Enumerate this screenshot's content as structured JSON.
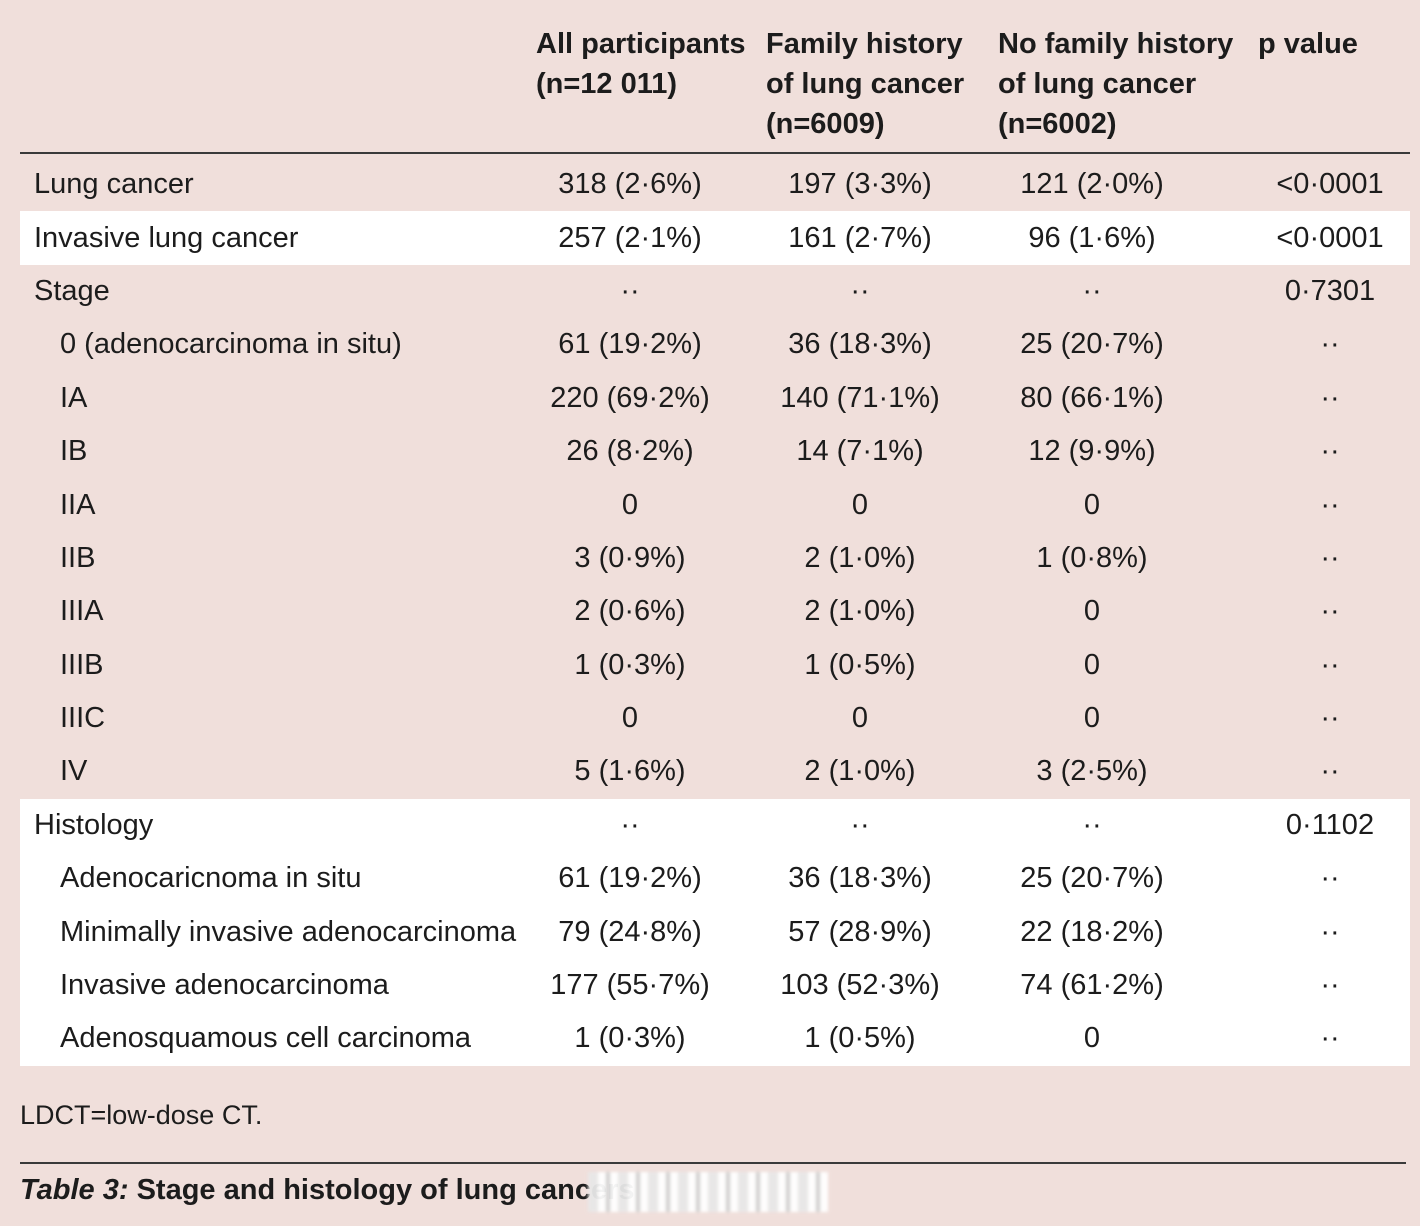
{
  "columns": {
    "all": "All participants\n(n=12 011)",
    "fh": "Family history\nof lung cancer\n(n=6009)",
    "nofh": "No family history\nof lung cancer\n(n=6002)",
    "p": "p value"
  },
  "rows": [
    {
      "label": "Lung cancer",
      "indent": false,
      "all": "318 (2·6%)",
      "fh": "197 (3·3%)",
      "nofh": "121 (2·0%)",
      "p": "<0·0001"
    },
    {
      "label": "Invasive lung cancer",
      "indent": false,
      "all": "257 (2·1%)",
      "fh": "161 (2·7%)",
      "nofh": "96 (1·6%)",
      "p": "<0·0001"
    },
    {
      "label": "Stage",
      "indent": false,
      "all": "··",
      "fh": "··",
      "nofh": "··",
      "p": "0·7301"
    },
    {
      "label": "0 (adenocarcinoma in situ)",
      "indent": true,
      "all": "61 (19·2%)",
      "fh": "36 (18·3%)",
      "nofh": "25 (20·7%)",
      "p": "··"
    },
    {
      "label": "IA",
      "indent": true,
      "all": "220 (69·2%)",
      "fh": "140 (71·1%)",
      "nofh": "80 (66·1%)",
      "p": "··"
    },
    {
      "label": "IB",
      "indent": true,
      "all": "26 (8·2%)",
      "fh": "14 (7·1%)",
      "nofh": "12 (9·9%)",
      "p": "··"
    },
    {
      "label": "IIA",
      "indent": true,
      "all": "0",
      "fh": "0",
      "nofh": "0",
      "p": "··"
    },
    {
      "label": "IIB",
      "indent": true,
      "all": "3 (0·9%)",
      "fh": "2 (1·0%)",
      "nofh": "1 (0·8%)",
      "p": "··"
    },
    {
      "label": "IIIA",
      "indent": true,
      "all": "2 (0·6%)",
      "fh": "2 (1·0%)",
      "nofh": "0",
      "p": "··"
    },
    {
      "label": "IIIB",
      "indent": true,
      "all": "1 (0·3%)",
      "fh": "1 (0·5%)",
      "nofh": "0",
      "p": "··"
    },
    {
      "label": "IIIC",
      "indent": true,
      "all": "0",
      "fh": "0",
      "nofh": "0",
      "p": "··"
    },
    {
      "label": "IV",
      "indent": true,
      "all": "5 (1·6%)",
      "fh": "2 (1·0%)",
      "nofh": "3 (2·5%)",
      "p": "··"
    },
    {
      "label": "Histology",
      "indent": false,
      "all": "··",
      "fh": "··",
      "nofh": "··",
      "p": "0·1102"
    },
    {
      "label": "Adenocaricnoma in situ",
      "indent": true,
      "all": "61 (19·2%)",
      "fh": "36 (18·3%)",
      "nofh": "25 (20·7%)",
      "p": "··"
    },
    {
      "label": "Minimally invasive adenocarcinoma",
      "indent": true,
      "all": "79 (24·8%)",
      "fh": "57 (28·9%)",
      "nofh": "22 (18·2%)",
      "p": "··"
    },
    {
      "label": "Invasive adenocarcinoma",
      "indent": true,
      "all": "177 (55·7%)",
      "fh": "103 (52·3%)",
      "nofh": "74 (61·2%)",
      "p": "··"
    },
    {
      "label": "Adenosquamous cell carcinoma",
      "indent": true,
      "all": "1 (0·3%)",
      "fh": "1 (0·5%)",
      "nofh": "0",
      "p": "··"
    }
  ],
  "footnote": "LDCT=low-dose CT.",
  "caption": {
    "label": "Table 3:",
    "text": " Stage and histology of lung cancers"
  },
  "colors": {
    "background": "#f0dfdb",
    "highlight_row": "#ffffff"
  }
}
